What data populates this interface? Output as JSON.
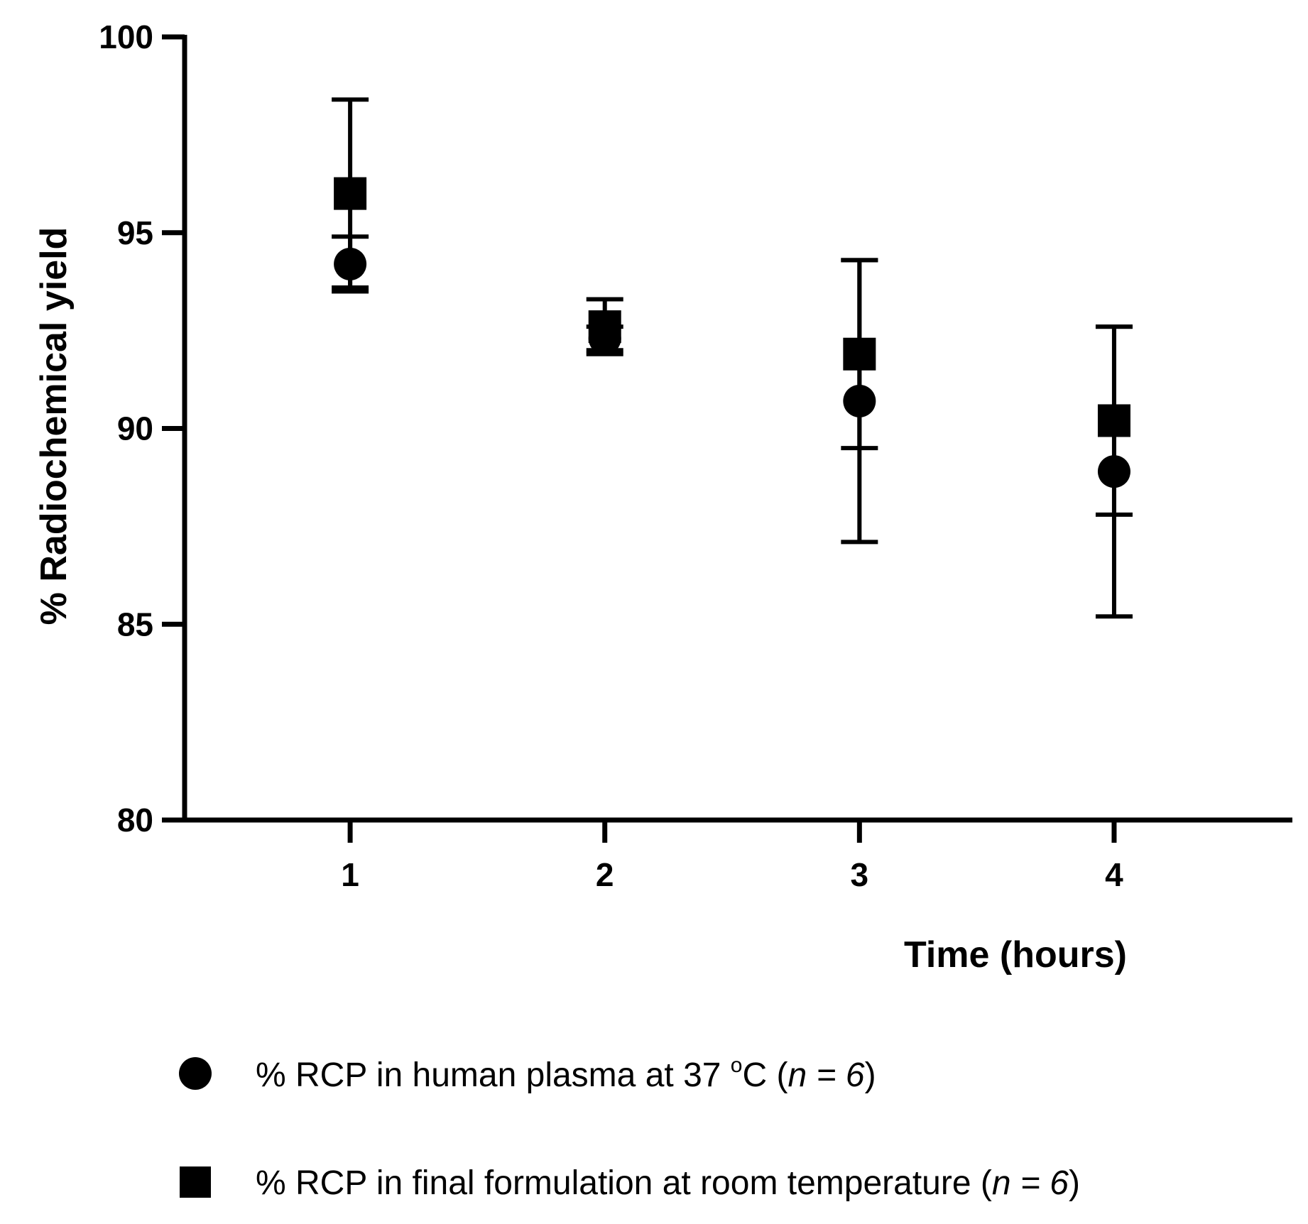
{
  "chart_data": {
    "type": "scatter",
    "title": "",
    "xlabel": "Time (hours)",
    "ylabel": "% Radiochemical yield",
    "xlim": [
      0.35,
      4.7
    ],
    "ylim": [
      80,
      100
    ],
    "xticks": [
      "1",
      "2",
      "3",
      "4"
    ],
    "yticks": [
      "80",
      "85",
      "90",
      "95",
      "100"
    ],
    "grid": false,
    "legend_position": "bottom",
    "series": [
      {
        "name": "% RCP in human plasma at 37 °C (n = 6)",
        "marker": "circle",
        "color": "#000000",
        "x": [
          1,
          2,
          3,
          4
        ],
        "y": [
          94.2,
          92.3,
          90.7,
          88.9
        ],
        "error": [
          0.7,
          0.3,
          3.6,
          3.7
        ]
      },
      {
        "name": "% RCP in final formulation at room temperature (n = 6)",
        "marker": "square",
        "color": "#000000",
        "x": [
          1,
          2,
          3,
          4
        ],
        "y": [
          96.0,
          92.6,
          91.9,
          90.2
        ],
        "error": [
          2.4,
          0.7,
          2.4,
          2.4
        ]
      }
    ]
  },
  "legend": {
    "circle_prefix": "% RCP in human plasma at 37 ",
    "circle_degree": "o",
    "circle_unit": "C (",
    "circle_n": "n",
    "circle_eq": " = ",
    "circle_num": "6",
    "circle_close": ")",
    "square_prefix": "% RCP in final formulation at room temperature (",
    "square_n": "n",
    "square_eq": " = ",
    "square_num": "6",
    "square_close": ")"
  }
}
